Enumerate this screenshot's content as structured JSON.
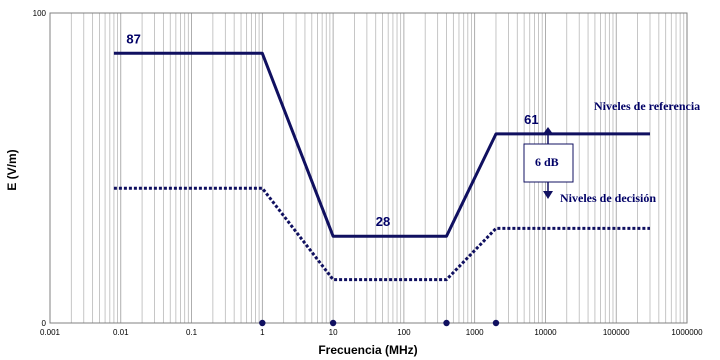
{
  "chart_data": {
    "type": "line",
    "xlabel": "Frecuencia (MHz)",
    "ylabel": "E (V/m)",
    "x_scale": "log",
    "xlim": [
      0.001,
      1000000
    ],
    "ylim": [
      0,
      100
    ],
    "x_tick_labels": [
      "0.001",
      "0.01",
      "0.1",
      "1",
      "10",
      "100",
      "1000",
      "10000",
      "100000",
      "1000000"
    ],
    "y_tick_labels": [
      "0",
      "100"
    ],
    "grid": true,
    "series": [
      {
        "name": "Niveles de referencia",
        "style": "solid",
        "color": "#101060",
        "x": [
          0.008,
          1,
          10,
          400,
          2000,
          300000
        ],
        "y": [
          87,
          87,
          28,
          28,
          61,
          61
        ]
      },
      {
        "name": "Niveles de decisión",
        "style": "dotted",
        "color": "#101060",
        "x": [
          0.008,
          1,
          10,
          400,
          2000,
          300000
        ],
        "y": [
          43.5,
          43.5,
          14,
          14,
          30.5,
          30.5
        ]
      }
    ],
    "value_labels": [
      {
        "text": "87",
        "x": 0.012,
        "y": 87
      },
      {
        "text": "28",
        "x": 40,
        "y": 28
      },
      {
        "text": "61",
        "x": 5000,
        "y": 61
      }
    ],
    "annotations": {
      "reference": "Niveles de referencia",
      "decision": "Niveles de decisión",
      "gap_label": "6 dB"
    },
    "x_markers": [
      1,
      10,
      400,
      2000
    ]
  }
}
